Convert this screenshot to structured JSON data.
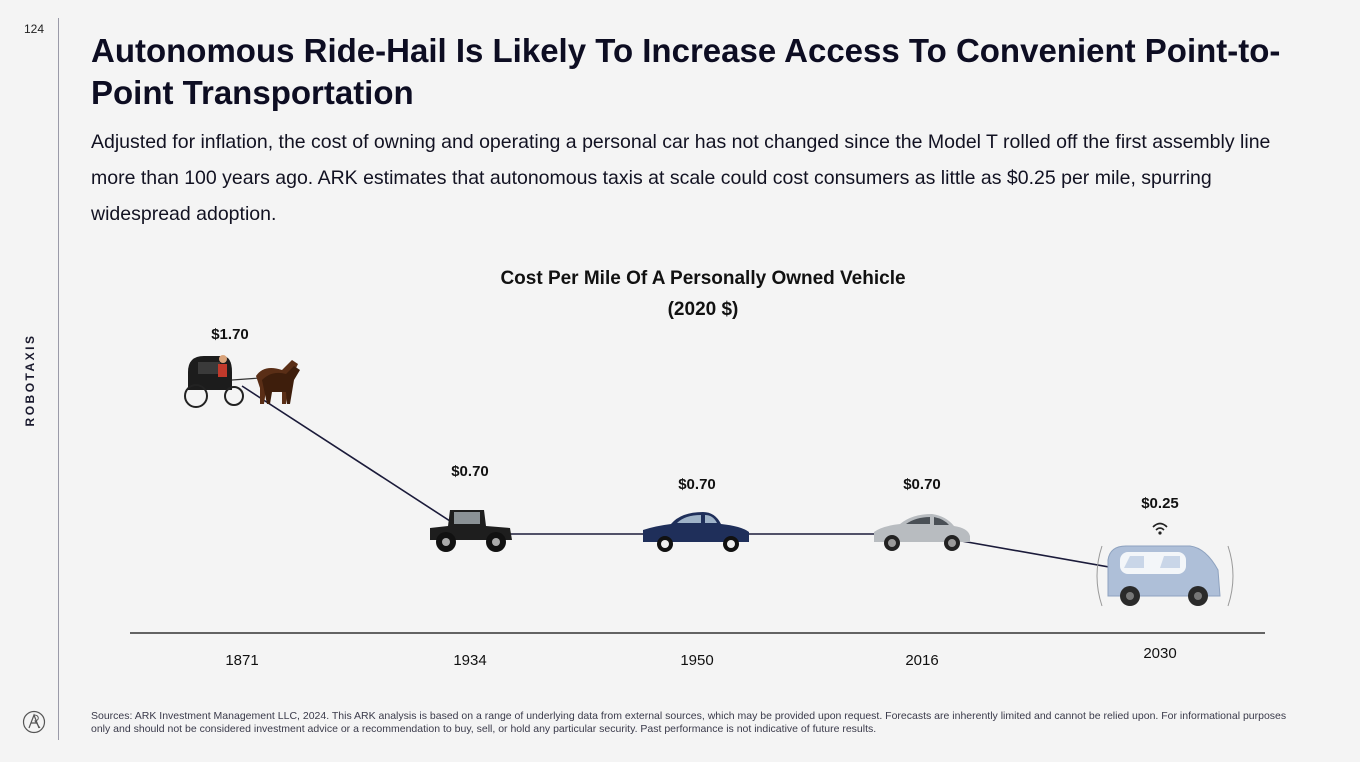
{
  "page": {
    "number": "124",
    "section": "ROBOTAXIS",
    "title": "Autonomous Ride-Hail Is Likely To Increase Access To Convenient Point-to-Point Transportation",
    "subtitle": "Adjusted for inflation, the cost of owning and operating a personal car has not changed since the Model T rolled off the first assembly line more than 100 years ago. ARK estimates that autonomous taxis at scale could cost consumers as little as $0.25 per mile, spurring widespread adoption.",
    "footnote": "Sources: ARK Investment Management LLC, 2024. This ARK analysis is based on a range of underlying data from external sources, which may be provided upon request. Forecasts are inherently limited and cannot be relied upon. For informational purposes only and should not be considered investment advice or a recommendation to buy, sell, or hold any particular security. Past performance is not indicative of future results.",
    "logo_icon": "ark-logo-icon"
  },
  "chart_data": {
    "type": "line",
    "title_lines": [
      "Cost Per Mile Of A Personally Owned Vehicle",
      "(2020 $)"
    ],
    "categories": [
      "1871",
      "1934",
      "1950",
      "2016",
      "2030"
    ],
    "values": [
      1.7,
      0.7,
      0.7,
      0.7,
      0.25
    ],
    "value_labels": [
      "$1.70",
      "$0.70",
      "$0.70",
      "$0.70",
      "$0.25"
    ],
    "markers": [
      "horse-carriage-icon",
      "model-t-car-icon",
      "1950s-sedan-icon",
      "modern-sedan-icon",
      "robotaxi-icon"
    ],
    "xlabel": "",
    "ylabel": "",
    "line_color": "#1b1b3a",
    "grid": false,
    "legend": "none"
  }
}
